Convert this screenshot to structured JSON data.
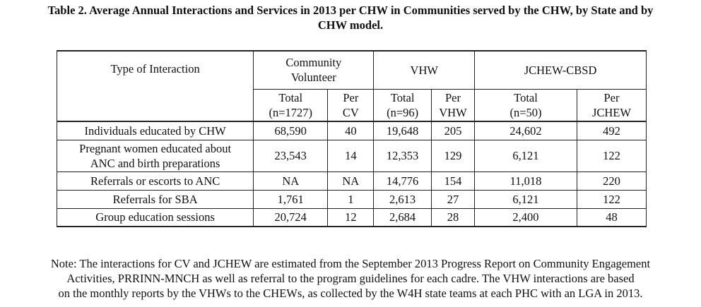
{
  "title": {
    "line1": "Table 2. Average Annual Interactions and Services in 2013 per CHW in Communities served by the CHW, by State and by",
    "line2": "CHW model."
  },
  "table": {
    "type_header": "Type of Interaction",
    "groups": {
      "cv_line1": "Community",
      "cv_line2": "Volunteer",
      "vhw": "VHW",
      "jchew": "JCHEW-CBSD"
    },
    "subheaders": {
      "cv_total_l1": "Total",
      "cv_total_l2": "(n=1727)",
      "cv_per_l1": "Per",
      "cv_per_l2": "CV",
      "vhw_total_l1": "Total",
      "vhw_total_l2": "(n=96)",
      "vhw_per_l1": "Per",
      "vhw_per_l2": "VHW",
      "jc_total_l1": "Total",
      "jc_total_l2": "(n=50)",
      "jc_per_l1": "Per",
      "jc_per_l2": "JCHEW"
    },
    "rows": [
      {
        "type_l1": "Individuals educated by CHW",
        "type_l2": "",
        "cv_total": "68,590",
        "cv_per": "40",
        "vhw_total": "19,648",
        "vhw_per": "205",
        "jc_total": "24,602",
        "jc_per": "492"
      },
      {
        "type_l1": "Pregnant women educated about",
        "type_l2": "ANC and birth preparations",
        "cv_total": "23,543",
        "cv_per": "14",
        "vhw_total": "12,353",
        "vhw_per": "129",
        "jc_total": "6,121",
        "jc_per": "122"
      },
      {
        "type_l1": "Referrals or escorts to ANC",
        "type_l2": "",
        "cv_total": "NA",
        "cv_per": "NA",
        "vhw_total": "14,776",
        "vhw_per": "154",
        "jc_total": "11,018",
        "jc_per": "220"
      },
      {
        "type_l1": "Referrals for SBA",
        "type_l2": "",
        "cv_total": "1,761",
        "cv_per": "1",
        "vhw_total": "2,613",
        "vhw_per": "27",
        "jc_total": "6,121",
        "jc_per": "122"
      },
      {
        "type_l1": "Group education sessions",
        "type_l2": "",
        "cv_total": "20,724",
        "cv_per": "12",
        "vhw_total": "2,684",
        "vhw_per": "28",
        "jc_total": "2,400",
        "jc_per": "48"
      }
    ]
  },
  "note": {
    "line1": "Note: The interactions for CV and JCHEW are estimated from the September 2013 Progress Report on Community Engagement",
    "line2": "Activities, PRRINN-MNCH as well as referral to the program guidelines for each cadre. The VHW interactions are based",
    "line3": "on the monthly reports by the VHWs to the CHEWs, as collected by the W4H state teams at each PHC with an LGA in 2013."
  }
}
